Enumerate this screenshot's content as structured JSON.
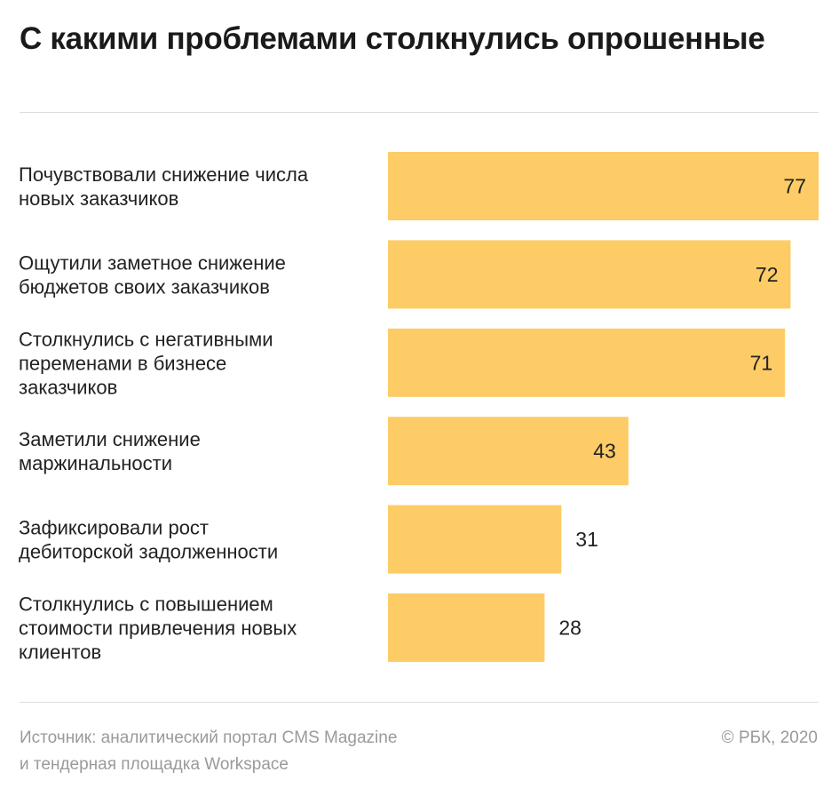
{
  "title": "С какими проблемами столкнулись опрошенные",
  "footer": {
    "source_line1": "Источник: аналитический портал CMS Magazine",
    "source_line2": "и тендерная площадка Workspace",
    "copyright": "© РБК, 2020"
  },
  "colors": {
    "bar": "#fdcc66",
    "text": "#222222",
    "muted": "#9a9a9a"
  },
  "chart_data": {
    "type": "bar",
    "orientation": "horizontal",
    "categories": [
      [
        "Почувствовали снижение числа",
        "новых заказчиков"
      ],
      [
        "Ощутили заметное снижение",
        "бюджетов своих заказчиков"
      ],
      [
        "Столкнулись с негативными",
        "переменами в бизнесе",
        "заказчиков"
      ],
      [
        "Заметили снижение",
        "маржинальности"
      ],
      [
        "Зафиксировали рост",
        "дебиторской задолженности"
      ],
      [
        "Столкнулись с повышением",
        "стоимости привлечения новых",
        "клиентов"
      ]
    ],
    "values": [
      77,
      72,
      71,
      43,
      31,
      28
    ],
    "title": "С какими проблемами столкнулись опрошенные",
    "xlabel": "",
    "ylabel": "",
    "xlim": [
      0,
      77
    ],
    "grid": false,
    "legend": "none"
  }
}
